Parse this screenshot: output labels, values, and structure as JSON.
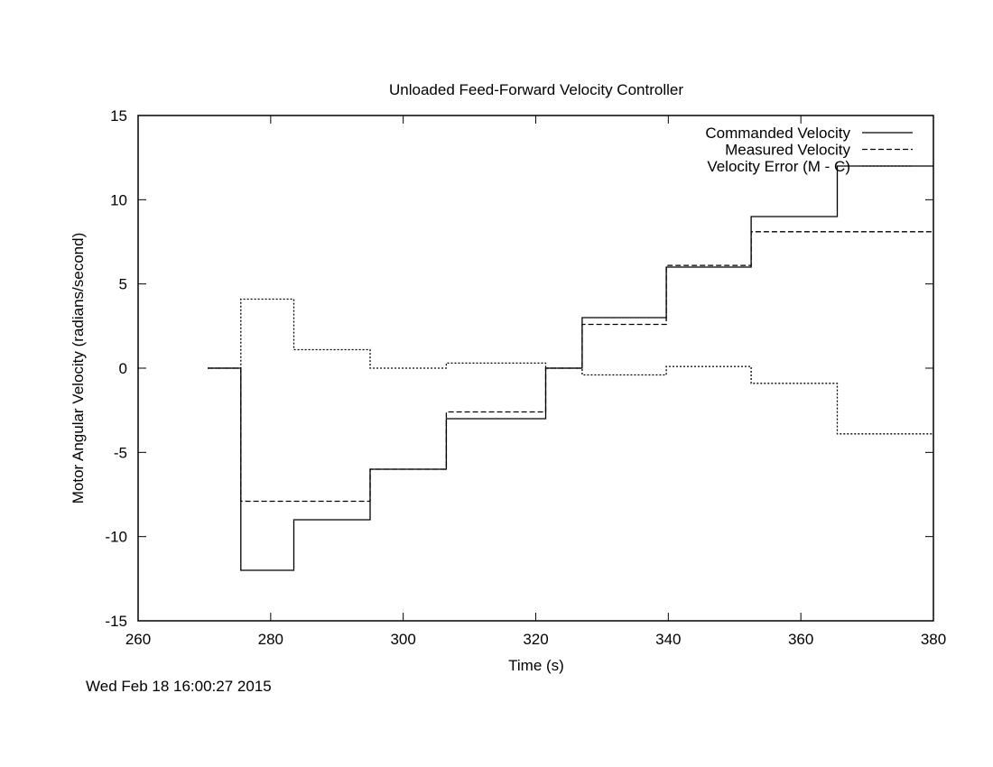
{
  "chart_data": {
    "type": "line",
    "title": "Unloaded Feed-Forward Velocity Controller",
    "xlabel": "Time (s)",
    "ylabel": "Motor Angular Velocity (radians/second)",
    "xlim": [
      260,
      380
    ],
    "ylim": [
      -15,
      15
    ],
    "xticks": [
      260,
      280,
      300,
      320,
      340,
      360,
      380
    ],
    "yticks": [
      -15,
      -10,
      -5,
      0,
      5,
      10,
      15
    ],
    "grid": false,
    "legend_position": "top-right",
    "timestamp": "Wed Feb 18 16:00:27 2015",
    "series": [
      {
        "name": "Commanded Velocity",
        "style": "solid",
        "steps": [
          {
            "t": 270.5,
            "v": 0
          },
          {
            "t": 275.5,
            "v": -12
          },
          {
            "t": 283.5,
            "v": -9
          },
          {
            "t": 295,
            "v": -6
          },
          {
            "t": 306.5,
            "v": -3
          },
          {
            "t": 321.5,
            "v": 0
          },
          {
            "t": 327,
            "v": 3
          },
          {
            "t": 339.7,
            "v": 6
          },
          {
            "t": 352.5,
            "v": 9
          },
          {
            "t": 365.5,
            "v": 12
          },
          {
            "t": 380,
            "v": 12
          }
        ]
      },
      {
        "name": "Measured  Velocity",
        "style": "dashed",
        "steps": [
          {
            "t": 270.5,
            "v": 0
          },
          {
            "t": 275.5,
            "v": -7.9
          },
          {
            "t": 283.5,
            "v": -7.9
          },
          {
            "t": 295,
            "v": -6.0
          },
          {
            "t": 306.5,
            "v": -2.6
          },
          {
            "t": 321.5,
            "v": 0
          },
          {
            "t": 327,
            "v": 2.6
          },
          {
            "t": 339.7,
            "v": 6.1
          },
          {
            "t": 352.5,
            "v": 8.1
          },
          {
            "t": 365.5,
            "v": 8.1
          },
          {
            "t": 380,
            "v": 8.1
          }
        ]
      },
      {
        "name": "Velocity Error (M - C)",
        "style": "dotted",
        "steps": [
          {
            "t": 270.5,
            "v": 0
          },
          {
            "t": 275.5,
            "v": 4.1
          },
          {
            "t": 283.5,
            "v": 1.1
          },
          {
            "t": 295,
            "v": 0.0
          },
          {
            "t": 306.5,
            "v": 0.3
          },
          {
            "t": 321.5,
            "v": 0
          },
          {
            "t": 327,
            "v": -0.4
          },
          {
            "t": 339.7,
            "v": 0.1
          },
          {
            "t": 352.5,
            "v": -0.9
          },
          {
            "t": 365.5,
            "v": -3.9
          },
          {
            "t": 380,
            "v": -3.9
          }
        ]
      }
    ]
  }
}
